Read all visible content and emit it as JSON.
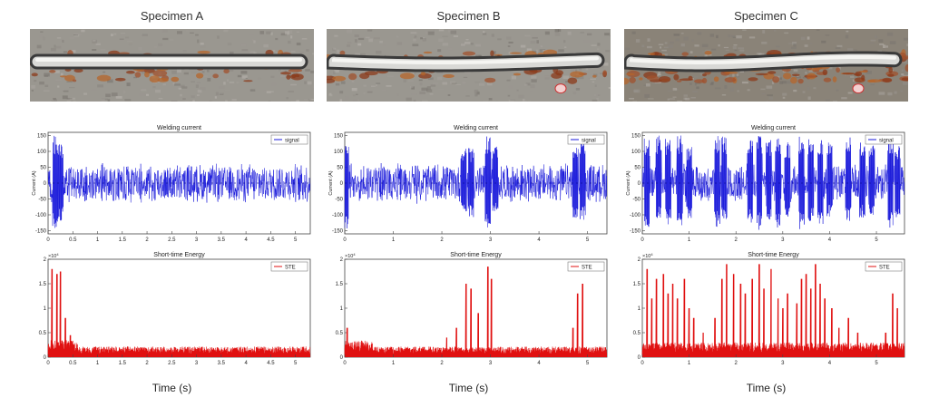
{
  "specimens": [
    {
      "title": "Specimen A",
      "photo_variant": "A",
      "current": {
        "title": "Welding current",
        "legend": "signal",
        "ylabel": "Current (A)",
        "yticks": [
          "150",
          "100",
          "50",
          "0",
          "-50",
          "-100",
          "-150"
        ],
        "xticks": [
          "0",
          "0.5",
          "1",
          "1.5",
          "2",
          "2.5",
          "3",
          "3.5",
          "4",
          "4.5",
          "5"
        ],
        "xmax": 5.3,
        "xtick_vals": [
          0,
          0.5,
          1,
          1.5,
          2,
          2.5,
          3,
          3.5,
          4,
          4.5,
          5
        ],
        "bursts": [
          [
            0.15,
            150,
            150
          ],
          [
            0.25,
            130,
            120
          ]
        ]
      },
      "energy": {
        "title": "Short-time Energy",
        "legend": "STE",
        "multiplier": "×10",
        "exponent": "4",
        "yticks": [
          "2",
          "1.5",
          "1",
          "0.5",
          "0"
        ],
        "xticks": [
          "0",
          "0.5",
          "1",
          "1.5",
          "2",
          "2.5",
          "3",
          "3.5",
          "4",
          "4.5",
          "5"
        ],
        "xmax": 5.3,
        "xtick_vals": [
          0,
          0.5,
          1,
          1.5,
          2,
          2.5,
          3,
          3.5,
          4,
          4.5,
          5
        ],
        "baseline": 0.18,
        "peaks": [
          [
            0.08,
            1.8
          ],
          [
            0.18,
            1.7
          ],
          [
            0.25,
            1.75
          ],
          [
            0.35,
            0.8
          ],
          [
            0.45,
            0.45
          ]
        ]
      },
      "time_label": "Time (s)"
    },
    {
      "title": "Specimen B",
      "photo_variant": "B",
      "current": {
        "title": "Welding current",
        "legend": "signal",
        "ylabel": "Current (A)",
        "yticks": [
          "150",
          "100",
          "50",
          "0",
          "-50",
          "-100",
          "-150"
        ],
        "xticks": [
          "0",
          "1",
          "2",
          "3",
          "4",
          "5"
        ],
        "xmax": 5.4,
        "xtick_vals": [
          0,
          1,
          2,
          3,
          4,
          5
        ],
        "bursts": [
          [
            0.02,
            150,
            150
          ],
          [
            2.45,
            110,
            100
          ],
          [
            2.6,
            110,
            110
          ],
          [
            2.95,
            150,
            150
          ],
          [
            3.1,
            120,
            90
          ],
          [
            4.75,
            120,
            110
          ],
          [
            4.9,
            130,
            120
          ]
        ]
      },
      "energy": {
        "title": "Short-time Energy",
        "legend": "STE",
        "multiplier": "×10",
        "exponent": "4",
        "yticks": [
          "2",
          "1.5",
          "1",
          "0.5",
          "0"
        ],
        "xticks": [
          "0",
          "1",
          "2",
          "3",
          "4",
          "5"
        ],
        "xmax": 5.4,
        "xtick_vals": [
          0,
          1,
          2,
          3,
          4,
          5
        ],
        "baseline": 0.18,
        "peaks": [
          [
            0.05,
            0.6
          ],
          [
            2.1,
            0.4
          ],
          [
            2.3,
            0.6
          ],
          [
            2.5,
            1.5
          ],
          [
            2.6,
            1.4
          ],
          [
            2.75,
            0.9
          ],
          [
            2.95,
            1.85
          ],
          [
            3.02,
            1.6
          ],
          [
            4.7,
            0.6
          ],
          [
            4.8,
            1.3
          ],
          [
            4.9,
            1.5
          ]
        ]
      },
      "time_label": "Time (s)"
    },
    {
      "title": "Specimen C",
      "photo_variant": "C",
      "current": {
        "title": "Welding current",
        "legend": "signal",
        "ylabel": "Current (A)",
        "yticks": [
          "150",
          "100",
          "50",
          "0",
          "-50",
          "-100",
          "-150"
        ],
        "xticks": [
          "0",
          "1",
          "2",
          "3",
          "4",
          "5"
        ],
        "xmax": 5.6,
        "xtick_vals": [
          0,
          1,
          2,
          3,
          4,
          5
        ],
        "bursts": [
          [
            0.1,
            140,
            140
          ],
          [
            0.35,
            150,
            120
          ],
          [
            0.55,
            140,
            130
          ],
          [
            0.8,
            150,
            140
          ],
          [
            1.0,
            120,
            110
          ],
          [
            1.6,
            150,
            140
          ],
          [
            1.75,
            150,
            120
          ],
          [
            2.3,
            140,
            130
          ],
          [
            2.5,
            150,
            150
          ],
          [
            2.7,
            140,
            120
          ],
          [
            2.9,
            150,
            140
          ],
          [
            3.1,
            130,
            120
          ],
          [
            3.4,
            150,
            150
          ],
          [
            3.6,
            140,
            120
          ],
          [
            3.8,
            150,
            130
          ],
          [
            4.0,
            140,
            110
          ],
          [
            4.4,
            150,
            120
          ],
          [
            4.7,
            130,
            110
          ],
          [
            4.9,
            120,
            100
          ],
          [
            5.3,
            150,
            140
          ],
          [
            5.45,
            120,
            110
          ]
        ]
      },
      "energy": {
        "title": "Short-time Energy",
        "legend": "STE",
        "multiplier": "×10",
        "exponent": "4",
        "yticks": [
          "2",
          "1.5",
          "1",
          "0.5",
          "0"
        ],
        "xticks": [
          "0",
          "1",
          "2",
          "3",
          "4",
          "5"
        ],
        "xmax": 5.6,
        "xtick_vals": [
          0,
          1,
          2,
          3,
          4,
          5
        ],
        "baseline": 0.25,
        "peaks": [
          [
            0.1,
            1.8
          ],
          [
            0.2,
            1.2
          ],
          [
            0.3,
            1.6
          ],
          [
            0.45,
            1.7
          ],
          [
            0.55,
            1.3
          ],
          [
            0.65,
            1.5
          ],
          [
            0.75,
            1.2
          ],
          [
            0.9,
            1.6
          ],
          [
            1.0,
            1.0
          ],
          [
            1.1,
            0.8
          ],
          [
            1.3,
            0.5
          ],
          [
            1.55,
            0.8
          ],
          [
            1.7,
            1.6
          ],
          [
            1.8,
            1.9
          ],
          [
            1.95,
            1.7
          ],
          [
            2.1,
            1.5
          ],
          [
            2.2,
            1.3
          ],
          [
            2.35,
            1.6
          ],
          [
            2.5,
            1.9
          ],
          [
            2.6,
            1.4
          ],
          [
            2.75,
            1.8
          ],
          [
            2.9,
            1.2
          ],
          [
            3.0,
            1.0
          ],
          [
            3.1,
            1.3
          ],
          [
            3.3,
            1.1
          ],
          [
            3.4,
            1.6
          ],
          [
            3.5,
            1.7
          ],
          [
            3.6,
            1.4
          ],
          [
            3.7,
            1.9
          ],
          [
            3.8,
            1.5
          ],
          [
            3.9,
            1.2
          ],
          [
            4.05,
            1.0
          ],
          [
            4.2,
            0.6
          ],
          [
            4.4,
            0.8
          ],
          [
            4.6,
            0.5
          ],
          [
            5.2,
            0.5
          ],
          [
            5.35,
            1.3
          ],
          [
            5.45,
            1.0
          ]
        ]
      },
      "time_label": "Time (s)"
    }
  ],
  "colors": {
    "current": "#1a1adb",
    "energy": "#e01010",
    "axis": "#444444"
  }
}
